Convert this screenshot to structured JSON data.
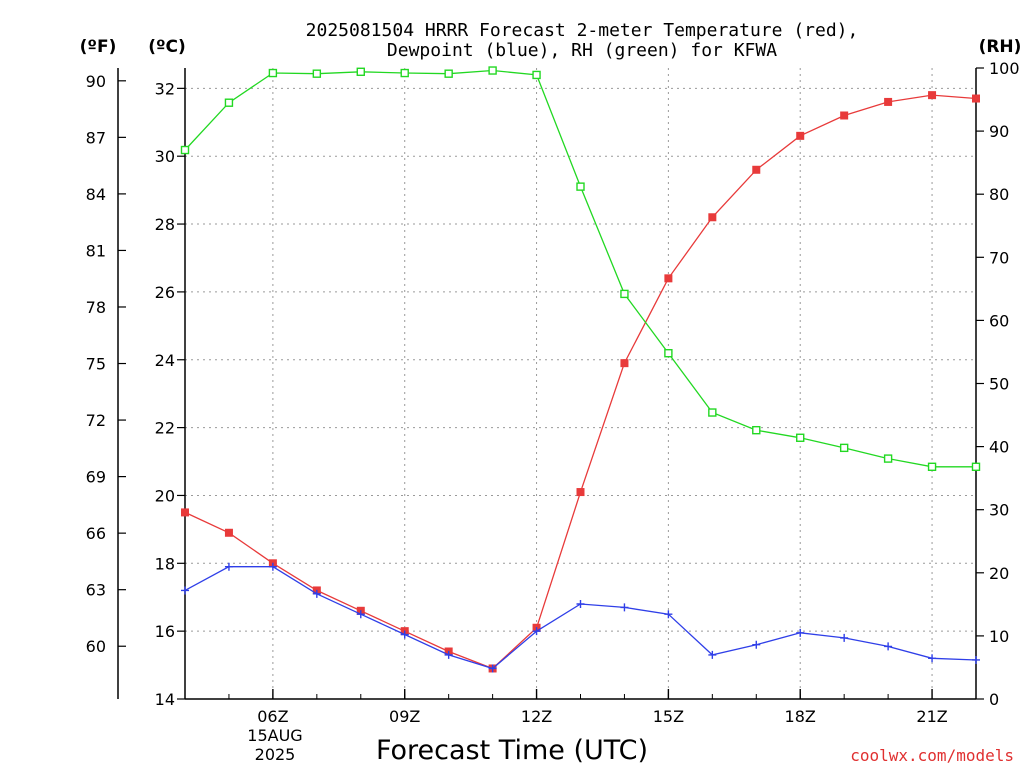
{
  "chart_data": {
    "type": "line",
    "title_lines": [
      "2025081504 HRRR Forecast 2-meter Temperature (red),",
      "Dewpoint (blue), RH (green) for KFWA"
    ],
    "xlabel": "Forecast Time (UTC)",
    "units": {
      "fahrenheit": "(ºF)",
      "celsius": "(ºC)",
      "rh": "(RH)"
    },
    "x_hours_utc": [
      4,
      5,
      6,
      7,
      8,
      9,
      10,
      11,
      12,
      13,
      14,
      15,
      16,
      17,
      18,
      19,
      20,
      21,
      22
    ],
    "xlim": [
      4,
      22
    ],
    "x_ticks": [
      {
        "hour": 6,
        "label": "06Z"
      },
      {
        "hour": 9,
        "label": "09Z"
      },
      {
        "hour": 12,
        "label": "12Z"
      },
      {
        "hour": 15,
        "label": "15Z"
      },
      {
        "hour": 18,
        "label": "18Z"
      },
      {
        "hour": 21,
        "label": "21Z"
      }
    ],
    "date_label": [
      "15AUG",
      "2025"
    ],
    "ylim_celsius": [
      14,
      32.6
    ],
    "y_ticks_celsius": [
      "14",
      "16",
      "18",
      "20",
      "22",
      "24",
      "26",
      "28",
      "30",
      "32"
    ],
    "y_ticks_fahrenheit": [
      "60",
      "63",
      "66",
      "69",
      "72",
      "75",
      "78",
      "81",
      "84",
      "87",
      "90"
    ],
    "ylim_rh": [
      0,
      100
    ],
    "y_ticks_rh": [
      "0",
      "10",
      "20",
      "30",
      "40",
      "50",
      "60",
      "70",
      "80",
      "90",
      "100"
    ],
    "grid": true,
    "series": [
      {
        "key": "temperature",
        "axis": "celsius",
        "marker": "filled-square",
        "color": "#e83a3a",
        "values": [
          19.5,
          18.9,
          18.0,
          17.2,
          16.6,
          16.0,
          15.4,
          14.9,
          16.1,
          20.1,
          23.9,
          26.4,
          28.2,
          29.6,
          30.6,
          31.2,
          31.6,
          31.8,
          31.7
        ]
      },
      {
        "key": "dewpoint",
        "axis": "celsius",
        "marker": "plus",
        "color": "#2f3fe8",
        "values": [
          17.2,
          17.9,
          17.9,
          17.1,
          16.5,
          15.9,
          15.3,
          14.9,
          16.0,
          16.8,
          16.7,
          16.5,
          15.3,
          15.6,
          15.95,
          15.8,
          15.55,
          15.2,
          15.15
        ]
      },
      {
        "key": "relative_humidity",
        "axis": "rh",
        "marker": "open-square",
        "color": "#22d822",
        "values": [
          87,
          94.5,
          99.2,
          99.1,
          99.4,
          99.2,
          99.1,
          99.6,
          98.9,
          81.2,
          64.2,
          54.8,
          45.4,
          42.6,
          41.4,
          39.8,
          38.1,
          36.8,
          36.8
        ]
      }
    ],
    "credit": "coolwx.com/models"
  }
}
